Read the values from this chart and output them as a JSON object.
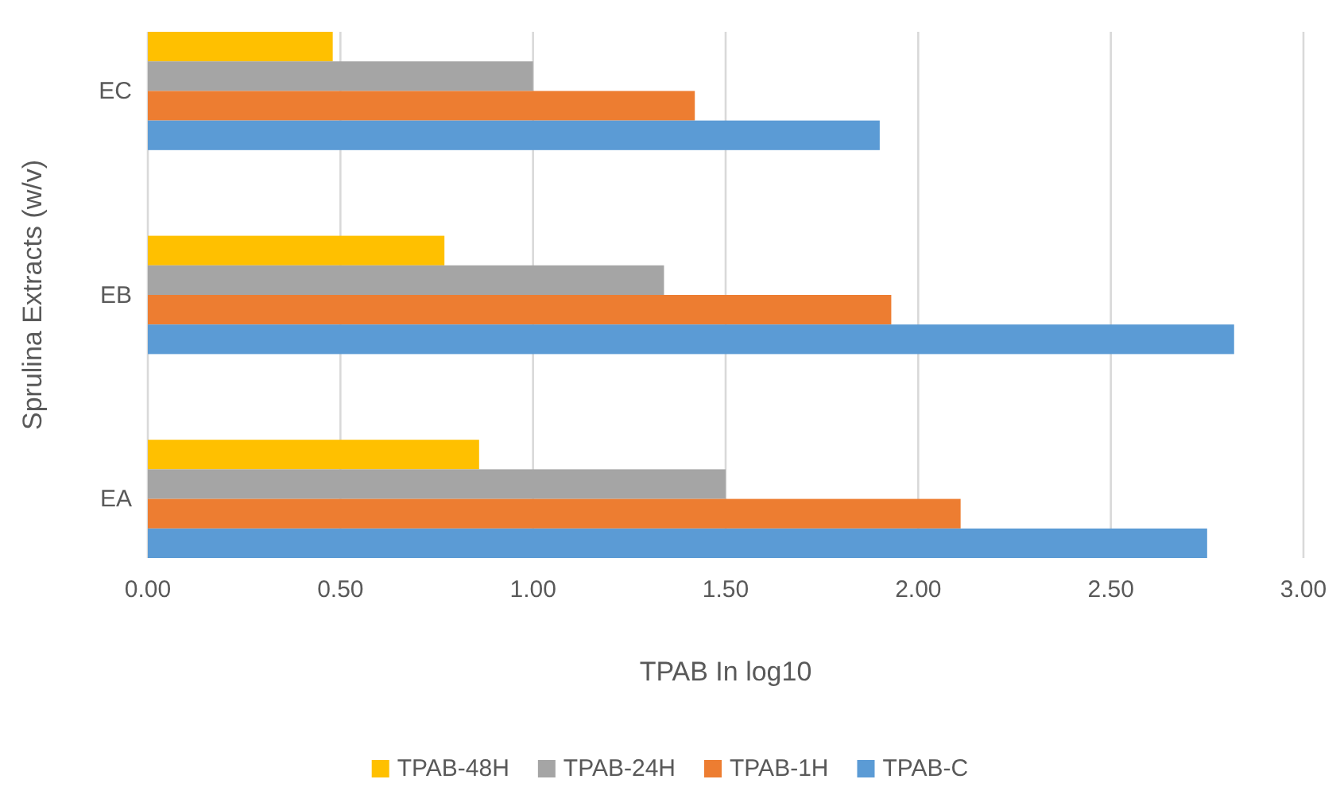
{
  "chart_data": {
    "type": "bar",
    "orientation": "horizontal",
    "xlabel": "TPAB In log10",
    "ylabel": "Sprulina Extracts (w/v)",
    "categories": [
      "EC",
      "EB",
      "EA"
    ],
    "series": [
      {
        "name": "TPAB-48H",
        "color": "#ffc000",
        "values": [
          0.48,
          0.77,
          0.86
        ]
      },
      {
        "name": "TPAB-24H",
        "color": "#a5a5a5",
        "values": [
          1.0,
          1.34,
          1.5
        ]
      },
      {
        "name": "TPAB-1H",
        "color": "#ed7d31",
        "values": [
          1.42,
          1.93,
          2.11
        ]
      },
      {
        "name": "TPAB-C",
        "color": "#5b9bd5",
        "values": [
          1.9,
          2.82,
          2.75
        ]
      }
    ],
    "xlim": [
      0,
      3
    ],
    "xticks": [
      {
        "value": 0,
        "label": "0.00"
      },
      {
        "value": 0.5,
        "label": "0.50"
      },
      {
        "value": 1,
        "label": "1.00"
      },
      {
        "value": 1.5,
        "label": "1.50"
      },
      {
        "value": 2,
        "label": "2.00"
      },
      {
        "value": 2.5,
        "label": "2.50"
      },
      {
        "value": 3,
        "label": "3.00"
      }
    ],
    "grid": "x",
    "legend": "bottom"
  }
}
